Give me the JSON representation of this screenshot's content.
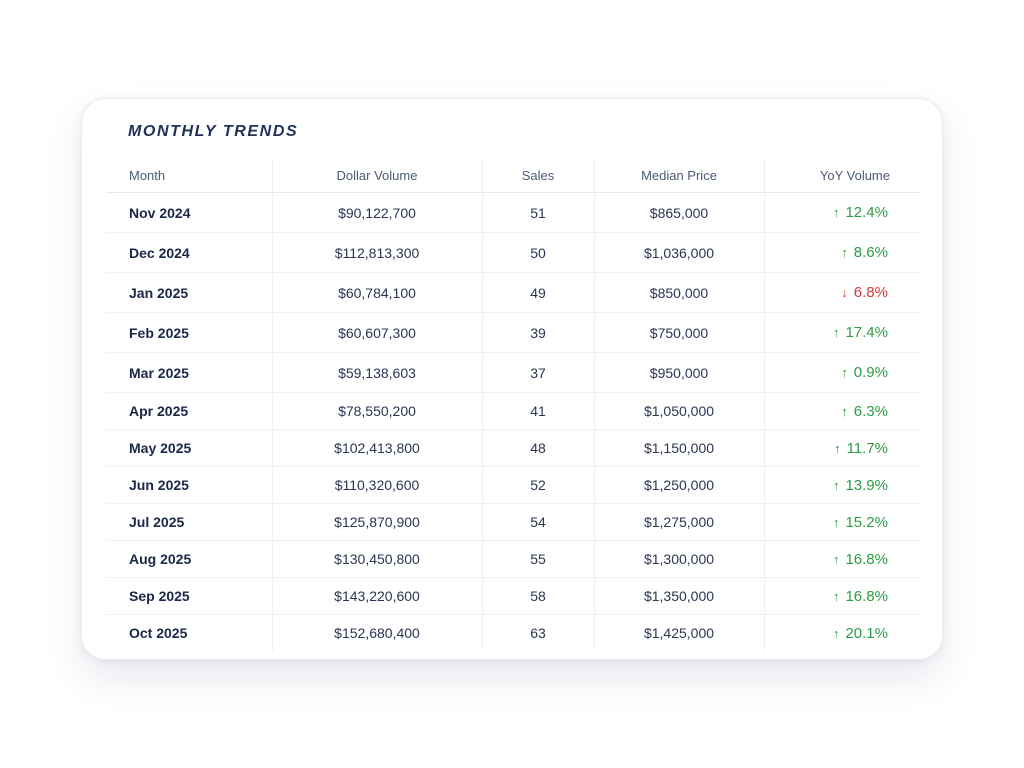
{
  "title": "MONTHLY TRENDS",
  "columns": [
    "Month",
    "Dollar Volume",
    "Sales",
    "Median Price",
    "YoY Volume"
  ],
  "rows": [
    {
      "month": "Nov 2024",
      "volume": "$90,122,700",
      "sales": "51",
      "median": "$865,000",
      "yoy": "12.4%",
      "dir": "up",
      "arrow": "↑"
    },
    {
      "month": "Dec 2024",
      "volume": "$112,813,300",
      "sales": "50",
      "median": "$1,036,000",
      "yoy": "8.6%",
      "dir": "up",
      "arrow": "↑"
    },
    {
      "month": "Jan 2025",
      "volume": "$60,784,100",
      "sales": "49",
      "median": "$850,000",
      "yoy": "6.8%",
      "dir": "down",
      "arrow": "↓"
    },
    {
      "month": "Feb 2025",
      "volume": "$60,607,300",
      "sales": "39",
      "median": "$750,000",
      "yoy": "17.4%",
      "dir": "up",
      "arrow": "↑"
    },
    {
      "month": "Mar 2025",
      "volume": "$59,138,603",
      "sales": "37",
      "median": "$950,000",
      "yoy": "0.9%",
      "dir": "up",
      "arrow": "↑"
    },
    {
      "month": "Apr 2025",
      "volume": "$78,550,200",
      "sales": "41",
      "median": "$1,050,000",
      "yoy": "6.3%",
      "dir": "up",
      "arrow": "↑"
    },
    {
      "month": "May 2025",
      "volume": "$102,413,800",
      "sales": "48",
      "median": "$1,150,000",
      "yoy": "11.7%",
      "dir": "up",
      "arrow": "↑"
    },
    {
      "month": "Jun 2025",
      "volume": "$110,320,600",
      "sales": "52",
      "median": "$1,250,000",
      "yoy": "13.9%",
      "dir": "up",
      "arrow": "↑"
    },
    {
      "month": "Jul 2025",
      "volume": "$125,870,900",
      "sales": "54",
      "median": "$1,275,000",
      "yoy": "15.2%",
      "dir": "up",
      "arrow": "↑"
    },
    {
      "month": "Aug 2025",
      "volume": "$130,450,800",
      "sales": "55",
      "median": "$1,300,000",
      "yoy": "16.8%",
      "dir": "up",
      "arrow": "↑"
    },
    {
      "month": "Sep 2025",
      "volume": "$143,220,600",
      "sales": "58",
      "median": "$1,350,000",
      "yoy": "16.8%",
      "dir": "up",
      "arrow": "↑"
    },
    {
      "month": "Oct 2025",
      "volume": "$152,680,400",
      "sales": "63",
      "median": "$1,425,000",
      "yoy": "20.1%",
      "dir": "up",
      "arrow": "↑"
    }
  ],
  "colors": {
    "title": "#1f2f57",
    "up": "#2a9d45",
    "down": "#d93636",
    "text": "#1f2b4a"
  }
}
